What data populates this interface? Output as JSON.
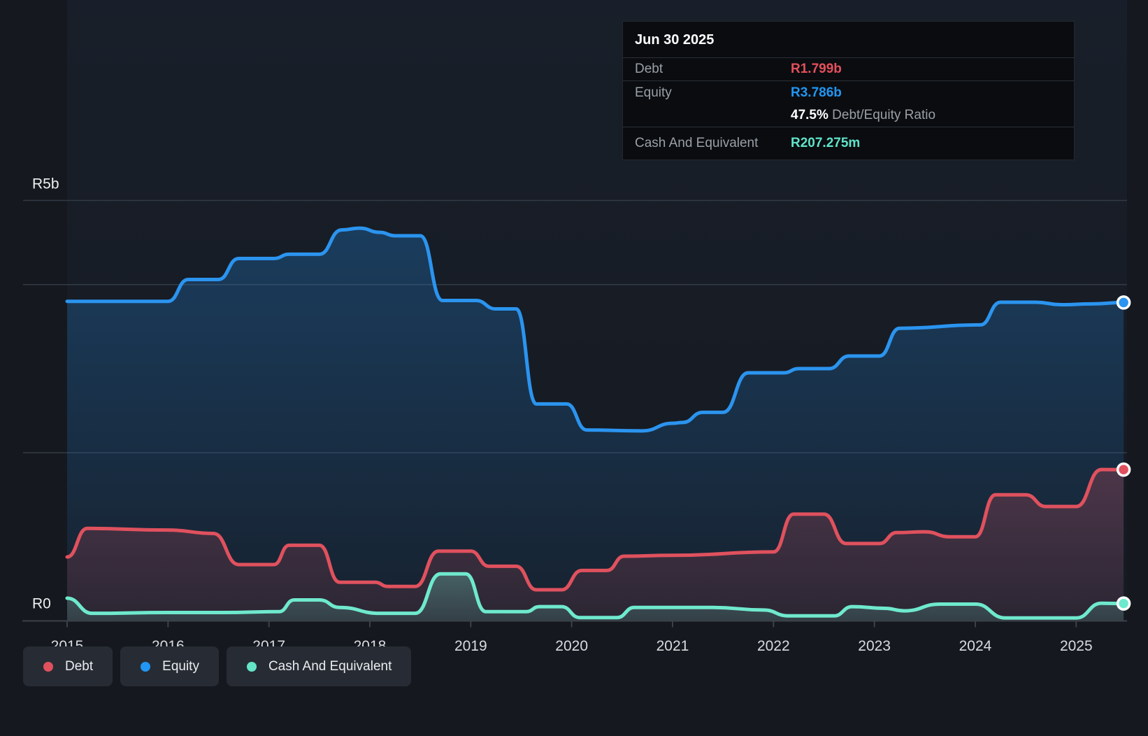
{
  "tooltip": {
    "date": "Jun 30 2025",
    "debt_label": "Debt",
    "debt_value": "R1.799b",
    "equity_label": "Equity",
    "equity_value": "R3.786b",
    "ratio_value": "47.5%",
    "ratio_label": "Debt/Equity Ratio",
    "cash_label": "Cash And Equivalent",
    "cash_value": "R207.275m"
  },
  "legend": {
    "items": [
      {
        "label": "Debt",
        "color": "#e0515e"
      },
      {
        "label": "Equity",
        "color": "#2196f3"
      },
      {
        "label": "Cash And Equivalent",
        "color": "#64e5c7"
      }
    ]
  },
  "axis": {
    "y_top_label": "R5b",
    "y_zero_label": "R0"
  },
  "colors": {
    "debt": "#e0515e",
    "equity": "#2b94ef",
    "cash": "#6fe9cd",
    "grid": "#333b44",
    "axis_line": "#3c4248",
    "tick_text": "#d8dce0",
    "page_bg": "#15181e",
    "plot_bg_top": "#151c25",
    "plot_bg_bottom": "#10151b"
  },
  "chart_data": {
    "type": "area",
    "title": "",
    "xlabel": "",
    "ylabel": "",
    "x_ticks": [
      2015,
      2016,
      2017,
      2018,
      2019,
      2020,
      2021,
      2022,
      2023,
      2024,
      2025
    ],
    "ylim": [
      0,
      5
    ],
    "y_unit": "R billions",
    "y_gridlines_b": [
      5,
      4,
      2
    ],
    "grid": true,
    "legend_position": "bottom-left",
    "end_markers_x": 2025.47,
    "series": [
      {
        "name": "Equity",
        "color": "#2b94ef",
        "points": [
          [
            2015.0,
            3.8
          ],
          [
            2016.0,
            3.8
          ],
          [
            2016.2,
            4.06
          ],
          [
            2016.5,
            4.06
          ],
          [
            2016.7,
            4.31
          ],
          [
            2017.05,
            4.31
          ],
          [
            2017.2,
            4.36
          ],
          [
            2017.5,
            4.36
          ],
          [
            2017.72,
            4.65
          ],
          [
            2017.9,
            4.67
          ],
          [
            2018.1,
            4.62
          ],
          [
            2018.25,
            4.58
          ],
          [
            2018.5,
            4.58
          ],
          [
            2018.72,
            3.81
          ],
          [
            2019.05,
            3.81
          ],
          [
            2019.25,
            3.71
          ],
          [
            2019.45,
            3.71
          ],
          [
            2019.65,
            2.58
          ],
          [
            2019.95,
            2.58
          ],
          [
            2020.15,
            2.27
          ],
          [
            2020.7,
            2.26
          ],
          [
            2021.0,
            2.35
          ],
          [
            2021.1,
            2.36
          ],
          [
            2021.3,
            2.48
          ],
          [
            2021.5,
            2.48
          ],
          [
            2021.75,
            2.95
          ],
          [
            2022.1,
            2.95
          ],
          [
            2022.25,
            3.0
          ],
          [
            2022.55,
            3.0
          ],
          [
            2022.75,
            3.15
          ],
          [
            2023.05,
            3.15
          ],
          [
            2023.25,
            3.48
          ],
          [
            2024.05,
            3.52
          ],
          [
            2024.25,
            3.79
          ],
          [
            2024.6,
            3.79
          ],
          [
            2024.85,
            3.76
          ],
          [
            2025.15,
            3.77
          ],
          [
            2025.47,
            3.786
          ]
        ]
      },
      {
        "name": "Debt",
        "color": "#e0515e",
        "points": [
          [
            2015.0,
            0.76
          ],
          [
            2015.2,
            1.1
          ],
          [
            2016.0,
            1.08
          ],
          [
            2016.45,
            1.04
          ],
          [
            2016.7,
            0.67
          ],
          [
            2017.05,
            0.67
          ],
          [
            2017.2,
            0.9
          ],
          [
            2017.5,
            0.9
          ],
          [
            2017.7,
            0.46
          ],
          [
            2018.05,
            0.46
          ],
          [
            2018.18,
            0.41
          ],
          [
            2018.45,
            0.41
          ],
          [
            2018.68,
            0.83
          ],
          [
            2019.0,
            0.83
          ],
          [
            2019.18,
            0.65
          ],
          [
            2019.45,
            0.65
          ],
          [
            2019.65,
            0.37
          ],
          [
            2019.9,
            0.37
          ],
          [
            2020.1,
            0.6
          ],
          [
            2020.35,
            0.6
          ],
          [
            2020.52,
            0.77
          ],
          [
            2021.0,
            0.78
          ],
          [
            2022.0,
            0.82
          ],
          [
            2022.2,
            1.27
          ],
          [
            2022.5,
            1.27
          ],
          [
            2022.72,
            0.92
          ],
          [
            2023.05,
            0.92
          ],
          [
            2023.22,
            1.05
          ],
          [
            2023.5,
            1.06
          ],
          [
            2023.75,
            1.0
          ],
          [
            2024.0,
            1.0
          ],
          [
            2024.2,
            1.5
          ],
          [
            2024.5,
            1.5
          ],
          [
            2024.7,
            1.36
          ],
          [
            2025.0,
            1.36
          ],
          [
            2025.25,
            1.8
          ],
          [
            2025.47,
            1.799
          ]
        ]
      },
      {
        "name": "Cash And Equivalent",
        "color": "#6fe9cd",
        "points": [
          [
            2015.0,
            0.27
          ],
          [
            2015.25,
            0.09
          ],
          [
            2016.0,
            0.1
          ],
          [
            2016.55,
            0.1
          ],
          [
            2017.1,
            0.11
          ],
          [
            2017.25,
            0.25
          ],
          [
            2017.5,
            0.25
          ],
          [
            2017.7,
            0.16
          ],
          [
            2018.1,
            0.09
          ],
          [
            2018.45,
            0.09
          ],
          [
            2018.7,
            0.56
          ],
          [
            2018.95,
            0.56
          ],
          [
            2019.15,
            0.11
          ],
          [
            2019.55,
            0.11
          ],
          [
            2019.68,
            0.17
          ],
          [
            2019.9,
            0.17
          ],
          [
            2020.08,
            0.04
          ],
          [
            2020.45,
            0.04
          ],
          [
            2020.62,
            0.16
          ],
          [
            2021.4,
            0.16
          ],
          [
            2021.9,
            0.13
          ],
          [
            2022.15,
            0.06
          ],
          [
            2022.6,
            0.06
          ],
          [
            2022.78,
            0.17
          ],
          [
            2023.1,
            0.15
          ],
          [
            2023.3,
            0.12
          ],
          [
            2023.65,
            0.2
          ],
          [
            2024.0,
            0.2
          ],
          [
            2024.3,
            0.035
          ],
          [
            2025.0,
            0.035
          ],
          [
            2025.25,
            0.21
          ],
          [
            2025.47,
            0.207
          ]
        ]
      }
    ]
  }
}
